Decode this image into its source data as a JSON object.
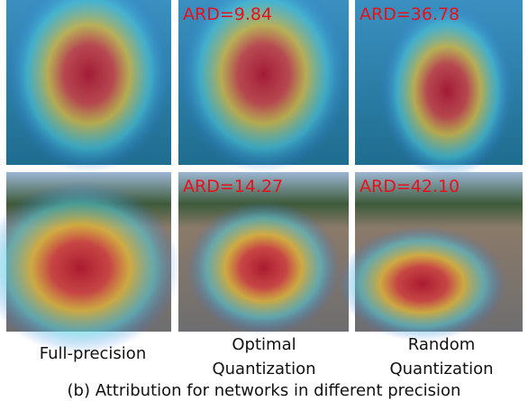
{
  "overlays": [
    "ARD=9.84",
    "ARD=36.78",
    "ARD=14.27",
    "ARD=42.10"
  ],
  "column_labels": [
    [
      "Full-precision"
    ],
    [
      "Optimal",
      "Quantization"
    ],
    [
      "Random",
      "Quantization"
    ]
  ],
  "caption": "(b) Attribution for networks in different precision"
}
